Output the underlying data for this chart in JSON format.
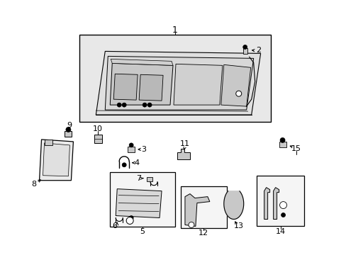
{
  "bg": "#ffffff",
  "lc": "#000000",
  "gray_fill": "#e8e8e8",
  "gray_mid": "#d8d8d8",
  "gray_dark": "#c8c8c8",
  "fig_w": 4.89,
  "fig_h": 3.6,
  "dpi": 100
}
